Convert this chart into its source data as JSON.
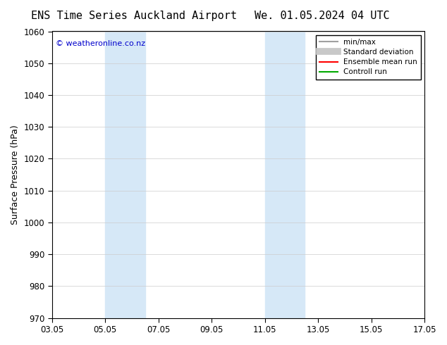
{
  "title_left": "ENS Time Series Auckland Airport",
  "title_right": "We. 01.05.2024 04 UTC",
  "ylabel": "Surface Pressure (hPa)",
  "ylim": [
    970,
    1060
  ],
  "yticks": [
    970,
    980,
    990,
    1000,
    1010,
    1020,
    1030,
    1040,
    1050,
    1060
  ],
  "xtick_labels": [
    "03.05",
    "05.05",
    "07.05",
    "09.05",
    "11.05",
    "13.05",
    "15.05",
    "17.05"
  ],
  "xtick_positions": [
    0,
    2,
    4,
    6,
    8,
    10,
    12,
    14
  ],
  "shade_bands": [
    {
      "x_start": 2,
      "x_end": 3.5
    },
    {
      "x_start": 8,
      "x_end": 9.5
    }
  ],
  "shade_color": "#d6e8f7",
  "watermark": "© weatheronline.co.nz",
  "watermark_color": "#0000cc",
  "background_color": "#ffffff",
  "legend_items": [
    {
      "label": "min/max",
      "color": "#a0a0a0",
      "lw": 1.5
    },
    {
      "label": "Standard deviation",
      "color": "#c8c8c8",
      "lw": 7
    },
    {
      "label": "Ensemble mean run",
      "color": "#ff0000",
      "lw": 1.5
    },
    {
      "label": "Controll run",
      "color": "#00aa00",
      "lw": 1.5
    }
  ],
  "title_fontsize": 11,
  "axis_fontsize": 9,
  "tick_fontsize": 8.5
}
